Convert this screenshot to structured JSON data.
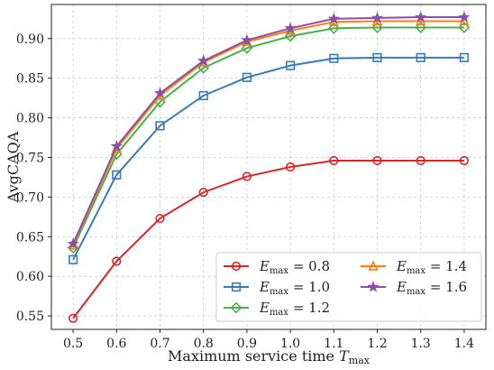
{
  "chart_data": {
    "type": "line",
    "xlabel": "Maximum service time",
    "xlabel_symbol": "T",
    "xlabel_sub": "max",
    "ylabel": "AvgCAQA",
    "x": [
      0.5,
      0.6,
      0.7,
      0.8,
      0.9,
      1.0,
      1.1,
      1.2,
      1.3,
      1.4
    ],
    "xlim": [
      0.45,
      1.45
    ],
    "ylim": [
      0.533,
      0.943
    ],
    "xticks": [
      0.5,
      0.6,
      0.7,
      0.8,
      0.9,
      1.0,
      1.1,
      1.2,
      1.3,
      1.4
    ],
    "xtick_labels": [
      "0.5",
      "0.6",
      "0.7",
      "0.8",
      "0.9",
      "1.0",
      "1.1",
      "1.2",
      "1.3",
      "1.4"
    ],
    "yticks": [
      0.55,
      0.6,
      0.65,
      0.7,
      0.75,
      0.8,
      0.85,
      0.9
    ],
    "ytick_labels": [
      "0.55",
      "0.60",
      "0.65",
      "0.70",
      "0.75",
      "0.80",
      "0.85",
      "0.90"
    ],
    "grid": true,
    "legend_position": "lower-right",
    "legend_columns": 2,
    "series": [
      {
        "name": "E",
        "sub": "max",
        "value_label": "= 0.8",
        "color": "#d62728",
        "marker": "circle",
        "values": [
          0.547,
          0.619,
          0.673,
          0.706,
          0.726,
          0.738,
          0.746,
          0.746,
          0.746,
          0.746
        ]
      },
      {
        "name": "E",
        "sub": "max",
        "value_label": "= 1.0",
        "color": "#3a7bb5",
        "marker": "square",
        "values": [
          0.621,
          0.728,
          0.79,
          0.828,
          0.851,
          0.866,
          0.875,
          0.876,
          0.876,
          0.876
        ]
      },
      {
        "name": "E",
        "sub": "max",
        "value_label": "= 1.2",
        "color": "#4daf4a",
        "marker": "diamond",
        "values": [
          0.636,
          0.754,
          0.82,
          0.863,
          0.888,
          0.903,
          0.913,
          0.914,
          0.914,
          0.914
        ]
      },
      {
        "name": "E",
        "sub": "max",
        "value_label": "= 1.4",
        "color": "#ff7f0e",
        "marker": "triangle",
        "values": [
          0.639,
          0.761,
          0.828,
          0.87,
          0.896,
          0.91,
          0.921,
          0.922,
          0.922,
          0.922
        ]
      },
      {
        "name": "E",
        "sub": "max",
        "value_label": "= 1.6",
        "color": "#8e4fa6",
        "marker": "star",
        "values": [
          0.641,
          0.764,
          0.831,
          0.872,
          0.898,
          0.913,
          0.925,
          0.926,
          0.927,
          0.927
        ]
      }
    ]
  }
}
